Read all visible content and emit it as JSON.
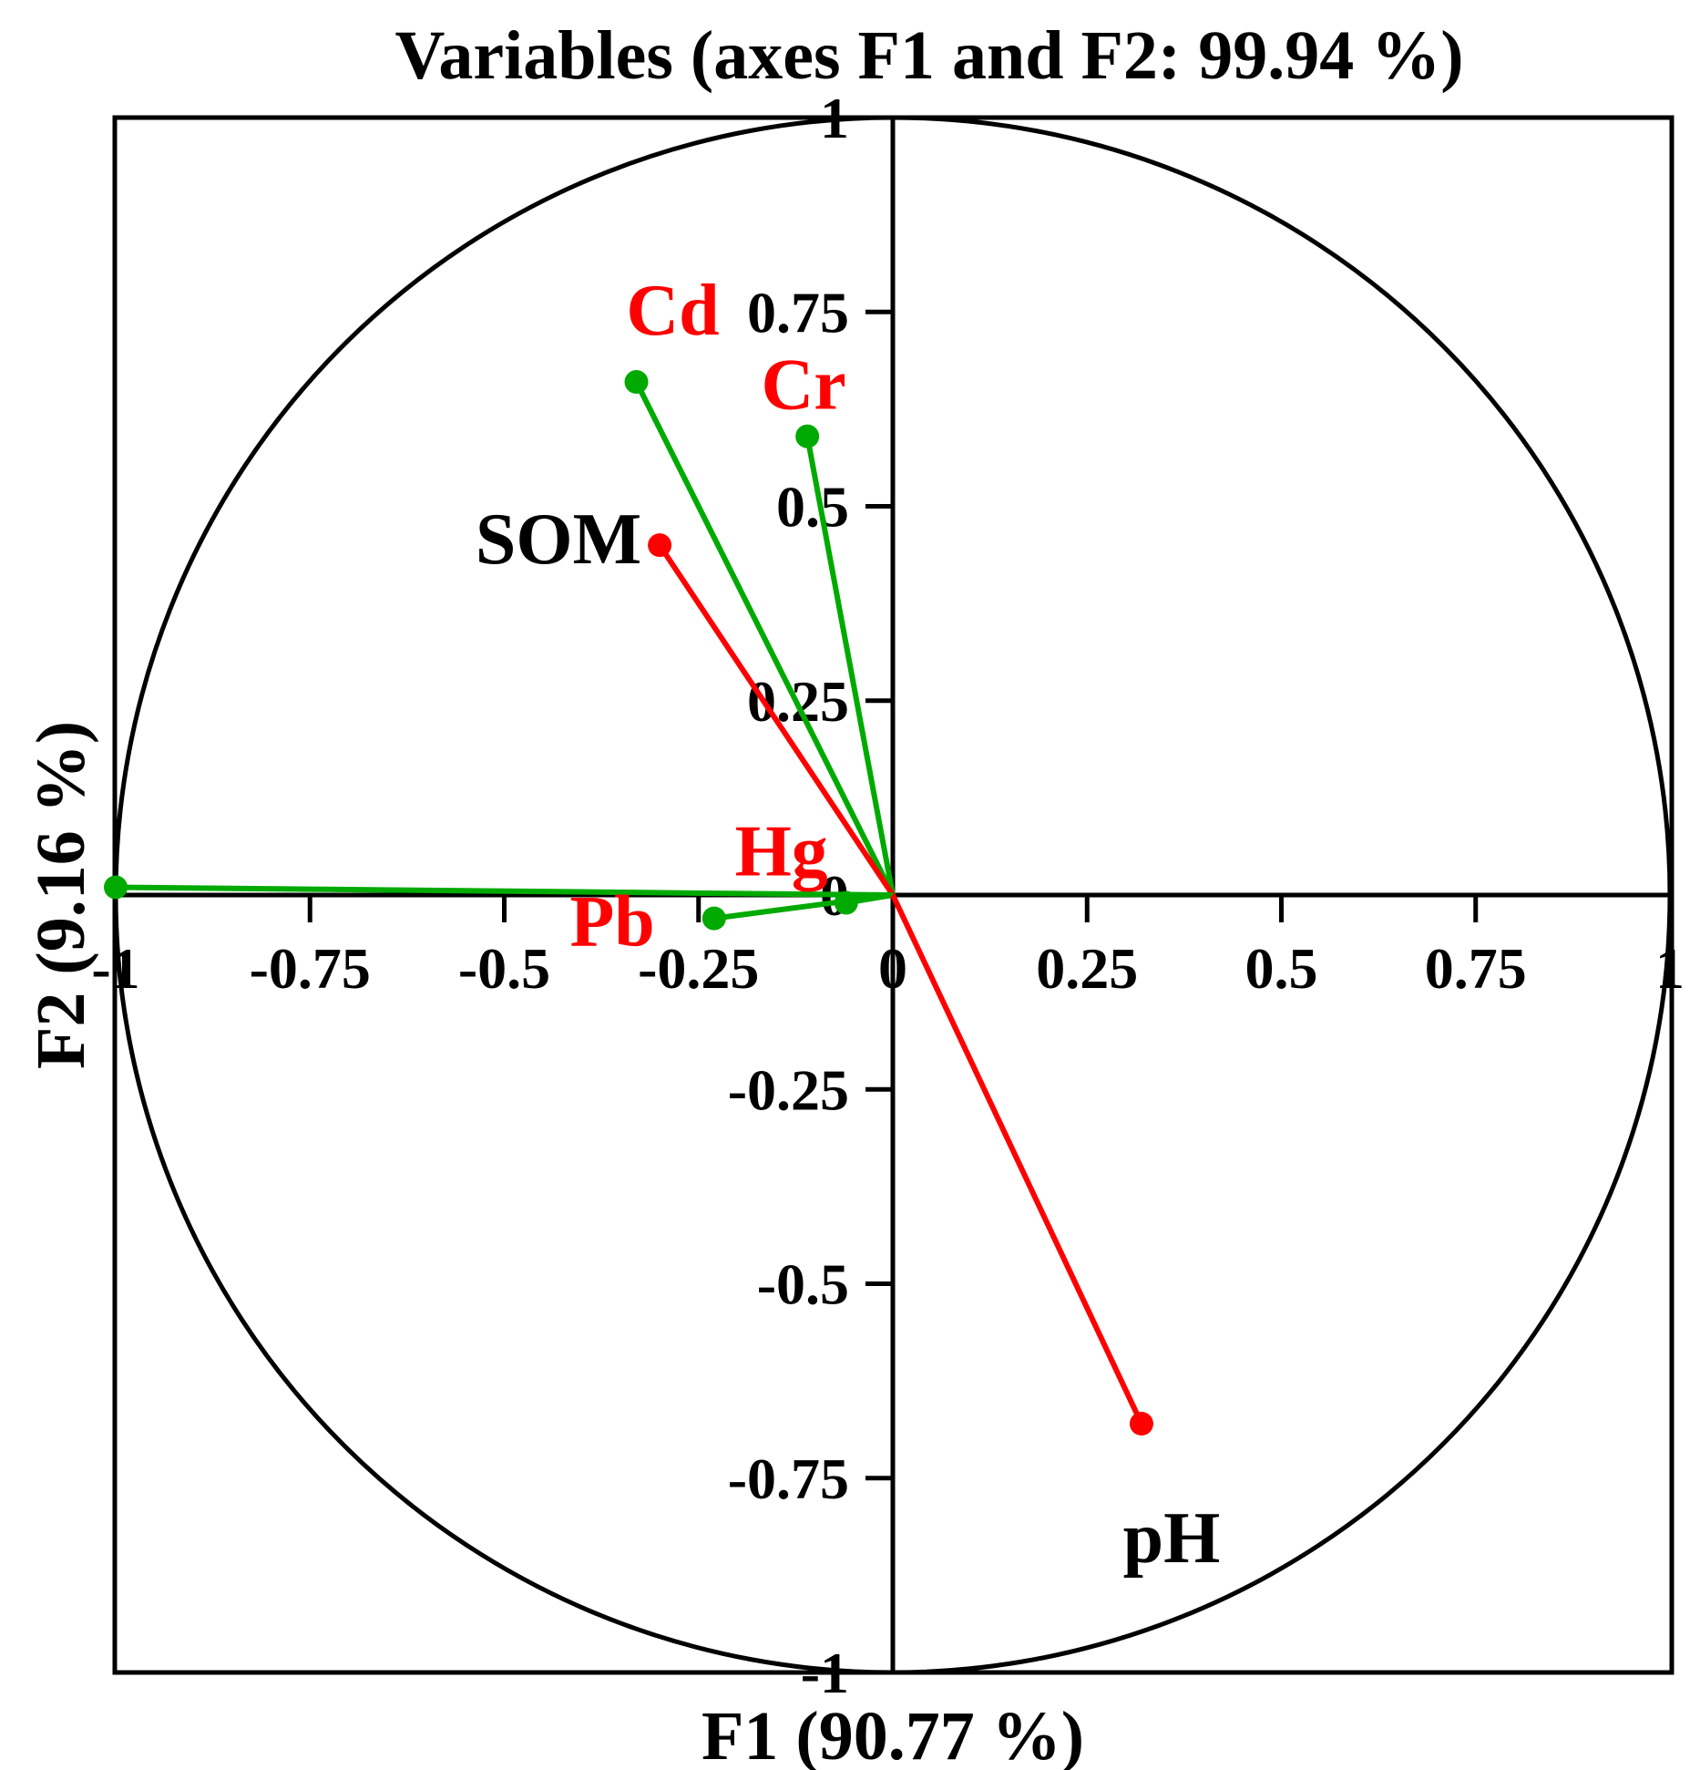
{
  "chart_data": {
    "type": "scatter",
    "title": "Variables (axes F1 and F2: 99.94 %)",
    "xlabel": "F1 (90.77 %)",
    "ylabel": "F2 (9.16 %)",
    "xlim": [
      -1,
      1
    ],
    "ylim": [
      -1,
      1
    ],
    "x_ticks": [
      "-1",
      "-0.75",
      "-0.5",
      "-0.25",
      "0",
      "0.25",
      "0.5",
      "0.75",
      "1"
    ],
    "y_ticks": [
      "1",
      "0.75",
      "0.5",
      "0.25",
      "0",
      "-0.25",
      "-0.5",
      "-0.75",
      "-1"
    ],
    "x_tick_values": [
      -1,
      -0.75,
      -0.5,
      -0.25,
      0,
      0.25,
      0.5,
      0.75,
      1
    ],
    "y_tick_values": [
      1,
      0.75,
      0.5,
      0.25,
      0,
      -0.25,
      -0.5,
      -0.75,
      -1
    ],
    "correlation_circle": true,
    "grid": false,
    "variables": [
      {
        "name": "Cd",
        "x": -0.33,
        "y": 0.66,
        "color": "#00aa00",
        "label_color": "#ff0000"
      },
      {
        "name": "Cr",
        "x": -0.11,
        "y": 0.59,
        "color": "#00aa00",
        "label_color": "#ff0000"
      },
      {
        "name": "SOM",
        "x": -0.3,
        "y": 0.45,
        "color": "#ff0000",
        "label_color": "#000000"
      },
      {
        "name": "Hg",
        "x": -0.06,
        "y": -0.01,
        "color": "#00aa00",
        "label_color": "#ff0000"
      },
      {
        "name": "Pb",
        "x": -0.23,
        "y": -0.03,
        "color": "#00aa00",
        "label_color": "#ff0000"
      },
      {
        "name": "",
        "x": -1.0,
        "y": 0.01,
        "color": "#00aa00",
        "label_color": "#ff0000"
      },
      {
        "name": "pH",
        "x": 0.32,
        "y": -0.68,
        "color": "#ff0000",
        "label_color": "#000000"
      }
    ]
  }
}
